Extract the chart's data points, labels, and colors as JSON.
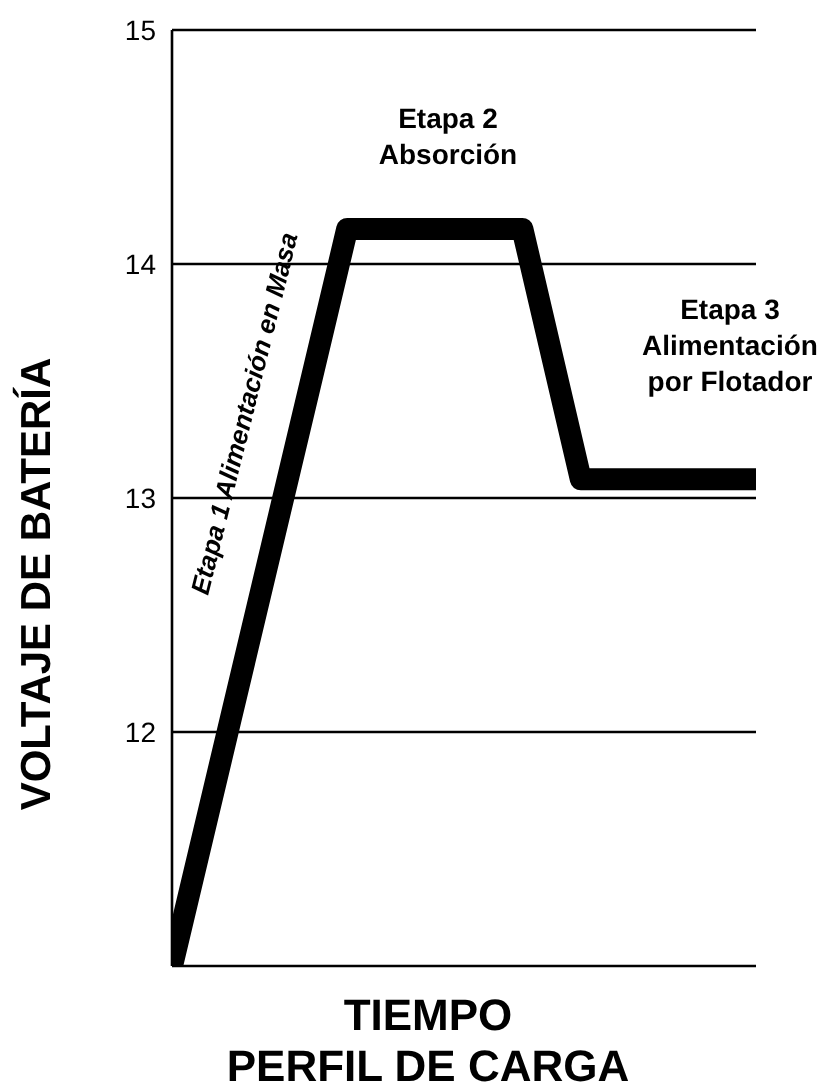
{
  "chart_data": {
    "type": "line",
    "xlabel": "TIEMPO",
    "ylabel": "VOLTAJE DE BATERÍA",
    "categories": [
      null,
      null,
      null,
      null,
      null,
      null,
      null,
      null,
      null,
      null,
      null
    ],
    "series": [
      {
        "color": "#000000",
        "values": [
          11.0,
          12.05,
          13.1,
          14.15,
          14.15,
          14.15,
          14.15,
          13.08,
          13.08,
          13.08,
          13.08
        ]
      }
    ],
    "ylim": [
      11,
      15
    ],
    "yticks": [
      12,
      13,
      14,
      15
    ],
    "grid": "y",
    "tick_labels": "y",
    "marker": "none",
    "line_style": "solid",
    "annotations": [
      "Etapa 1 Alimentación en Masa",
      "Etapa 2\nAbsorción",
      "Etapa 3\nAlimentación\npor Flotador",
      "PERFIL DE CARGA"
    ]
  }
}
